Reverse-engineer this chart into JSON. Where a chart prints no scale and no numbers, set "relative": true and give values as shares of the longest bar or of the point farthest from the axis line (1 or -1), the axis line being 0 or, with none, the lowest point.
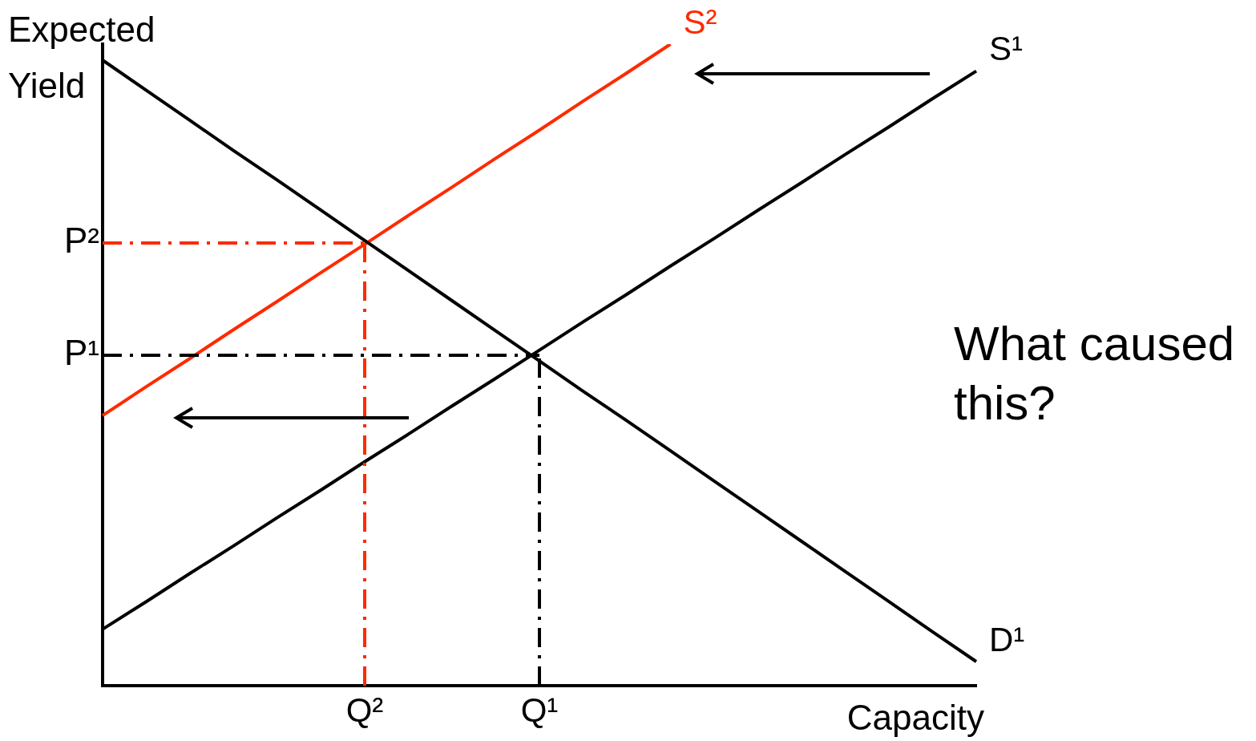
{
  "chart_data": {
    "type": "line",
    "relative": true,
    "xlabel": "Capacity",
    "ylabel": "Expected Yield",
    "categories": [
      null,
      null,
      null,
      null,
      null,
      null,
      "Q²",
      null,
      null,
      null,
      "Q¹",
      null,
      null,
      null,
      null,
      null,
      null,
      null,
      null,
      null,
      null
    ],
    "series": [
      {
        "name": "D¹",
        "color": "#000000",
        "values": [
          0.975,
          0.928,
          0.881,
          0.834,
          0.788,
          0.741,
          0.694,
          0.647,
          0.6,
          0.553,
          0.506,
          0.459,
          0.413,
          0.366,
          0.319,
          0.272,
          0.225,
          0.178,
          0.131,
          0.084,
          0.0375
        ]
      },
      {
        "name": "S¹",
        "color": "#000000",
        "values": [
          0.088,
          0.131,
          0.175,
          0.218,
          0.262,
          0.305,
          0.349,
          0.392,
          0.436,
          0.479,
          0.523,
          0.567,
          0.61,
          0.654,
          0.697,
          0.741,
          0.784,
          0.828,
          0.871,
          0.915,
          0.958
        ]
      },
      {
        "name": "S²",
        "color": "#ff2a00",
        "values": [
          0.421,
          0.466,
          0.51,
          0.555,
          0.599,
          0.644,
          0.688,
          0.733,
          0.777,
          0.822,
          0.866,
          0.911,
          0.955,
          1.0,
          null,
          null,
          null,
          null,
          null,
          null,
          null
        ]
      }
    ],
    "ref_lines": [
      {
        "axis": "y",
        "value": 0.69,
        "label": "P²",
        "color": "#ff2a00",
        "line_style": "dashed"
      },
      {
        "axis": "x",
        "value": "Q²",
        "color": "#ff2a00",
        "line_style": "dashed"
      },
      {
        "axis": "y",
        "value": 0.515,
        "label": "P¹",
        "color": "#000000",
        "line_style": "dashed"
      },
      {
        "axis": "x",
        "value": "Q¹",
        "color": "#000000",
        "line_style": "dashed"
      }
    ],
    "annotations": [
      "What caused this?"
    ],
    "legend": false,
    "grid": false,
    "marker": "none",
    "line_style": "solid"
  }
}
